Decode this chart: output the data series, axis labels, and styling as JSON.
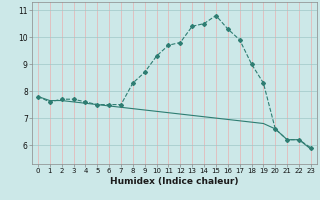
{
  "xlabel": "Humidex (Indice chaleur)",
  "xlim": [
    -0.5,
    23.5
  ],
  "ylim": [
    5.3,
    11.3
  ],
  "yticks": [
    6,
    7,
    8,
    9,
    10,
    11
  ],
  "xticks": [
    0,
    1,
    2,
    3,
    4,
    5,
    6,
    7,
    8,
    9,
    10,
    11,
    12,
    13,
    14,
    15,
    16,
    17,
    18,
    19,
    20,
    21,
    22,
    23
  ],
  "background_color": "#cce8e8",
  "grid_color_h": "#a0c8c8",
  "grid_color_v": "#e8b0b0",
  "line_color": "#2e7d72",
  "line1_x": [
    0,
    1,
    2,
    3,
    4,
    5,
    6,
    7,
    8,
    9,
    10,
    11,
    12,
    13,
    14,
    15,
    16,
    17,
    18,
    19,
    20,
    21,
    22,
    23
  ],
  "line1_y": [
    7.8,
    7.6,
    7.7,
    7.7,
    7.6,
    7.5,
    7.5,
    7.5,
    8.3,
    8.7,
    9.3,
    9.7,
    9.8,
    10.4,
    10.5,
    10.8,
    10.3,
    9.9,
    9.0,
    8.3,
    6.6,
    6.2,
    6.2,
    5.9
  ],
  "line2_x": [
    0,
    1,
    2,
    3,
    4,
    5,
    6,
    7,
    8,
    9,
    10,
    11,
    12,
    13,
    14,
    15,
    16,
    17,
    18,
    19,
    20,
    21,
    22,
    23
  ],
  "line2_y": [
    7.8,
    7.65,
    7.65,
    7.6,
    7.55,
    7.5,
    7.45,
    7.4,
    7.35,
    7.3,
    7.25,
    7.2,
    7.15,
    7.1,
    7.05,
    7.0,
    6.95,
    6.9,
    6.85,
    6.8,
    6.6,
    6.2,
    6.2,
    5.85
  ]
}
